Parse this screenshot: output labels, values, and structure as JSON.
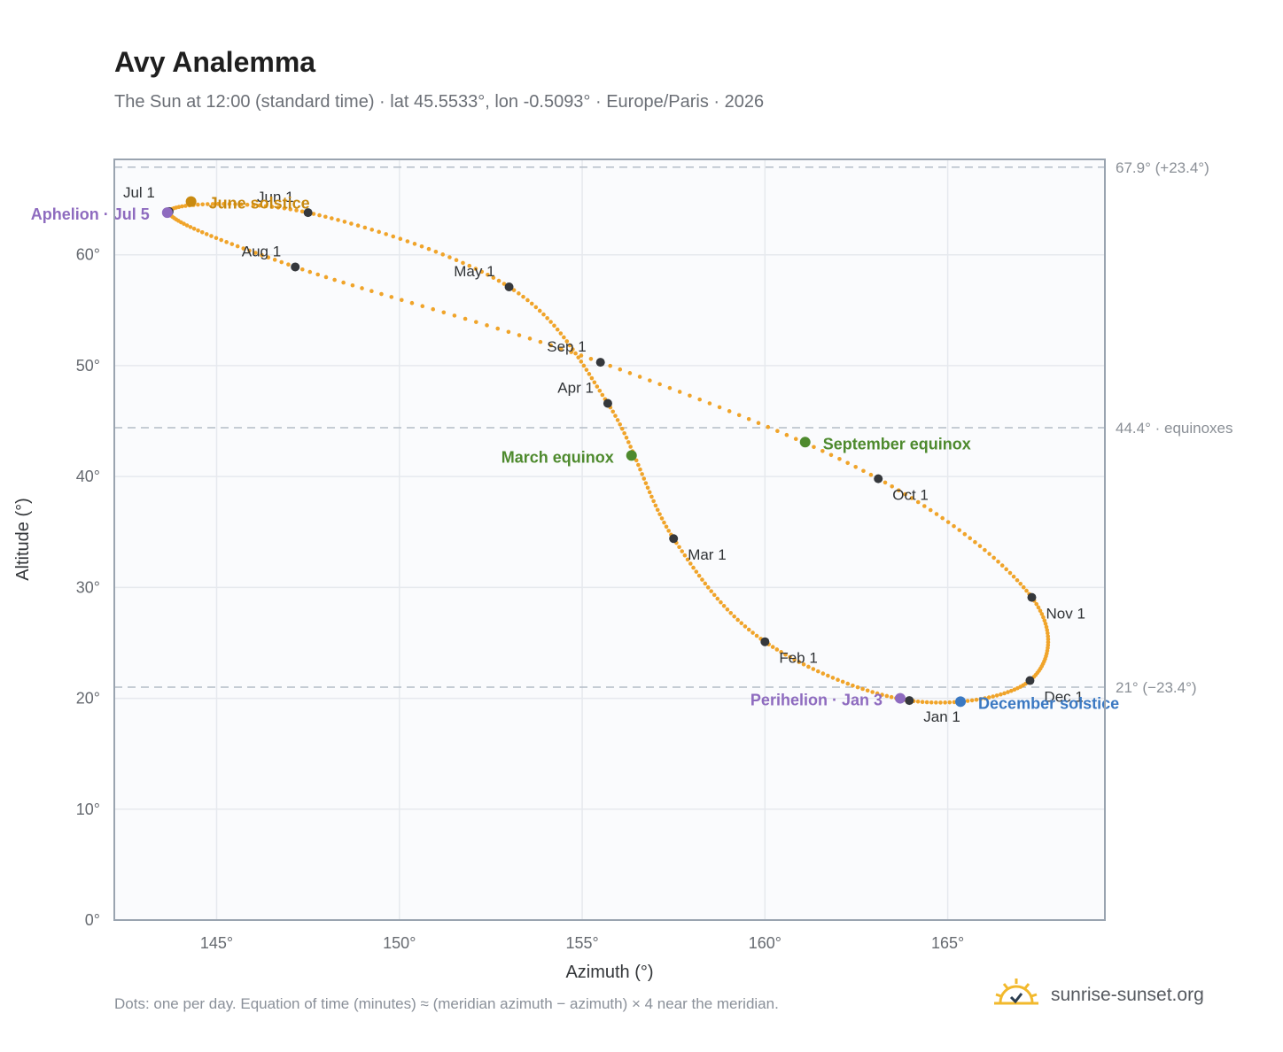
{
  "title": "Avy Analemma",
  "subtitle": "The Sun at 12:00 (standard time) · lat 45.5533°, lon -0.5093° · Europe/Paris · 2026",
  "footnote": "Dots: one per day. Equation of time (minutes) ≈ (meridian azimuth − azimuth) × 4 near the meridian.",
  "brand": {
    "name": "sunrise-sunset.org",
    "icon": "sun-logo-icon"
  },
  "chart_data": {
    "type": "scatter",
    "xlabel": "Azimuth (°)",
    "ylabel": "Altitude (°)",
    "xlim": [
      142.2,
      169.3
    ],
    "ylim": [
      0,
      68.6
    ],
    "x_ticks": [
      145,
      150,
      155,
      160,
      165
    ],
    "x_tick_labels": [
      "145°",
      "150°",
      "155°",
      "160°",
      "165°"
    ],
    "y_ticks": [
      0,
      10,
      20,
      30,
      40,
      50,
      60
    ],
    "y_tick_labels": [
      "0°",
      "10°",
      "20°",
      "30°",
      "40°",
      "50°",
      "60°"
    ],
    "grid": true,
    "reference_lines": [
      {
        "y": 67.9,
        "label": "67.9° (+23.4°)"
      },
      {
        "y": 44.4,
        "label": "44.4° · equinoxes"
      },
      {
        "y": 21.0,
        "label": "21° (−23.4°)"
      }
    ],
    "monthly_points": [
      {
        "label": "Jan 1",
        "day": 0,
        "az": 163.95,
        "alt": 19.8
      },
      {
        "label": "Feb 1",
        "day": 31,
        "az": 160.0,
        "alt": 25.1
      },
      {
        "label": "Mar 1",
        "day": 59,
        "az": 157.5,
        "alt": 34.4
      },
      {
        "label": "Apr 1",
        "day": 90,
        "az": 155.7,
        "alt": 46.6
      },
      {
        "label": "May 1",
        "day": 120,
        "az": 153.0,
        "alt": 57.1
      },
      {
        "label": "Jun 1",
        "day": 151,
        "az": 147.5,
        "alt": 63.8
      },
      {
        "label": "Jul 1",
        "day": 181,
        "az": 143.7,
        "alt": 63.9
      },
      {
        "label": "Aug 1",
        "day": 212,
        "az": 147.15,
        "alt": 58.9
      },
      {
        "label": "Sep 1",
        "day": 243,
        "az": 155.5,
        "alt": 50.3
      },
      {
        "label": "Oct 1",
        "day": 273,
        "az": 163.1,
        "alt": 39.8
      },
      {
        "label": "Nov 1",
        "day": 304,
        "az": 167.3,
        "alt": 29.1
      },
      {
        "label": "Dec 1",
        "day": 334,
        "az": 167.25,
        "alt": 21.6
      }
    ],
    "events": [
      {
        "label": "Perihelion · Jan 3",
        "day": 2,
        "az": 163.7,
        "alt": 20.0,
        "color": "#8e6bbf"
      },
      {
        "label": "March equinox",
        "day": 78,
        "az": 156.35,
        "alt": 41.9,
        "color": "#4e8a2e"
      },
      {
        "label": "June solstice",
        "day": 171,
        "az": 144.3,
        "alt": 64.8,
        "color": "#c98a10"
      },
      {
        "label": "Aphelion · Jul 5",
        "day": 185,
        "az": 143.65,
        "alt": 63.8,
        "color": "#8e6bbf"
      },
      {
        "label": "September equinox",
        "day": 265,
        "az": 161.1,
        "alt": 43.1,
        "color": "#4e8a2e"
      },
      {
        "label": "December solstice",
        "day": 354,
        "az": 165.35,
        "alt": 19.7,
        "color": "#3a78c2"
      }
    ],
    "series_color": "#f0a42a",
    "marker_color": "#35383c"
  }
}
